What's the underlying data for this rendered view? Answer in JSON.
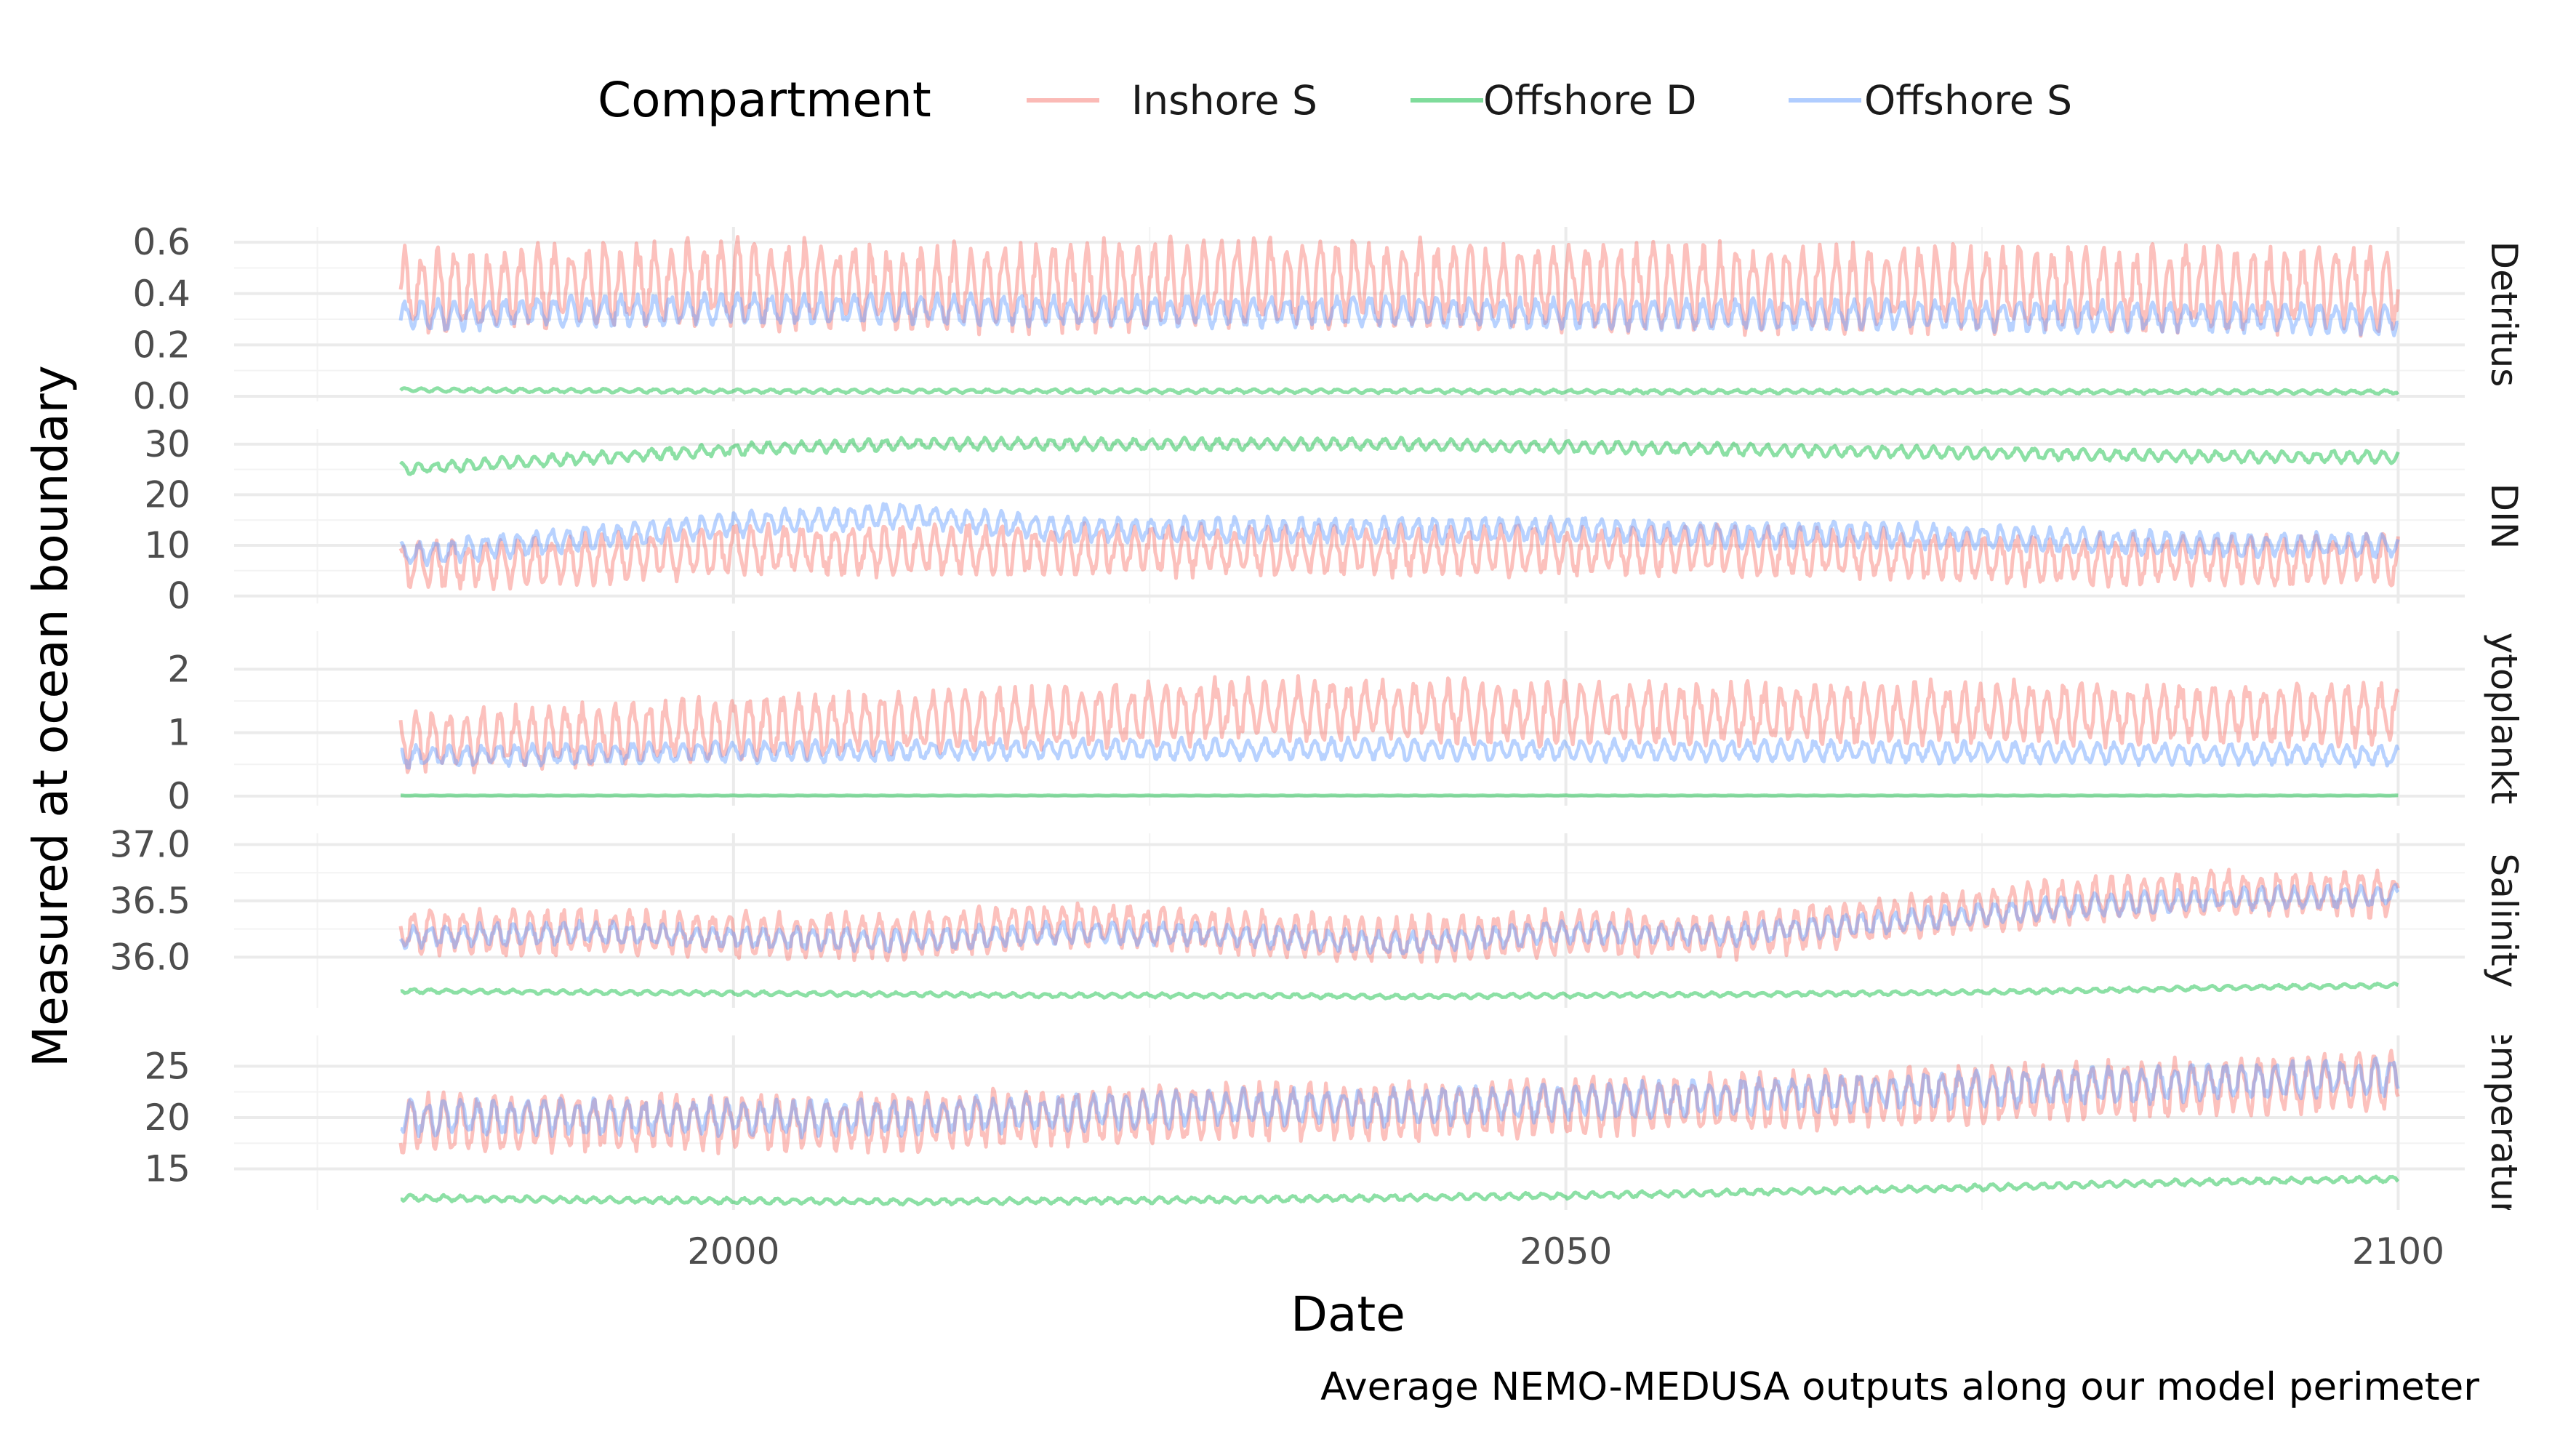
{
  "legend": {
    "title": "Compartment",
    "items": [
      {
        "label": "Inshore S",
        "color": "#F8766D"
      },
      {
        "label": "Offshore D",
        "color": "#00BA38"
      },
      {
        "label": "Offshore S",
        "color": "#619CFF"
      }
    ]
  },
  "caption": "Average NEMO-MEDUSA outputs along our model perimeter",
  "chart_data": {
    "type": "line",
    "xlabel": "Date",
    "ylabel": "Measured at ocean boundary",
    "xlim": [
      1970,
      2104
    ],
    "x_start": 1980,
    "x_end": 2100,
    "x_ticks": [
      2000,
      2050,
      2100
    ],
    "x_tick_labels": [
      "2000",
      "2050",
      "2100"
    ],
    "grid": true,
    "legend_position": "top",
    "line_alpha": 0.45,
    "series_names": [
      "Inshore S",
      "Offshore D",
      "Offshore S"
    ],
    "panels": [
      {
        "strip": "Detritus",
        "ylim": [
          -0.02,
          0.66
        ],
        "y_ticks": [
          0.0,
          0.2,
          0.4,
          0.6
        ],
        "y_tick_labels": [
          "0.0",
          "0.2",
          "0.4",
          "0.6"
        ],
        "series": [
          {
            "name": "Inshore S",
            "x": [
              1980,
              1990,
              2000,
              2010,
              2020,
              2030,
              2040,
              2050,
              2060,
              2070,
              2080,
              2090,
              2100
            ],
            "values": [
              0.4,
              0.43,
              0.44,
              0.42,
              0.43,
              0.44,
              0.44,
              0.43,
              0.42,
              0.42,
              0.42,
              0.42,
              0.42
            ],
            "amplitude": 0.17
          },
          {
            "name": "Offshore D",
            "x": [
              1980,
              1990,
              2000,
              2010,
              2020,
              2030,
              2040,
              2050,
              2060,
              2070,
              2080,
              2090,
              2100
            ],
            "values": [
              0.025,
              0.022,
              0.02,
              0.02,
              0.02,
              0.02,
              0.02,
              0.018,
              0.018,
              0.018,
              0.018,
              0.017,
              0.017
            ],
            "amplitude": 0.008
          },
          {
            "name": "Offshore S",
            "x": [
              1980,
              1990,
              2000,
              2010,
              2020,
              2030,
              2040,
              2050,
              2060,
              2070,
              2080,
              2090,
              2100
            ],
            "values": [
              0.31,
              0.33,
              0.34,
              0.34,
              0.33,
              0.33,
              0.33,
              0.32,
              0.32,
              0.32,
              0.31,
              0.31,
              0.3
            ],
            "amplitude": 0.06
          }
        ]
      },
      {
        "strip": "DIN",
        "ylim": [
          -1.5,
          33
        ],
        "y_ticks": [
          0,
          10,
          20,
          30
        ],
        "y_tick_labels": [
          "0",
          "10",
          "20",
          "30"
        ],
        "series": [
          {
            "name": "Inshore S",
            "x": [
              1980,
              1990,
              2000,
              2010,
              2020,
              2030,
              2040,
              2050,
              2060,
              2070,
              2080,
              2090,
              2100
            ],
            "values": [
              6,
              7,
              9,
              9,
              9,
              9,
              9,
              9,
              9,
              8,
              7,
              7,
              7
            ],
            "amplitude": 5
          },
          {
            "name": "Offshore D",
            "x": [
              1980,
              1990,
              2000,
              2010,
              2020,
              2030,
              2040,
              2050,
              2060,
              2070,
              2080,
              2090,
              2100
            ],
            "values": [
              25,
              27,
              29,
              30,
              30,
              30,
              30,
              29.5,
              29,
              28.5,
              28,
              27.5,
              27.5
            ],
            "amplitude": 1.2
          },
          {
            "name": "Offshore S",
            "x": [
              1980,
              1990,
              2000,
              2010,
              2020,
              2030,
              2040,
              2050,
              2060,
              2070,
              2080,
              2090,
              2100
            ],
            "values": [
              8,
              11,
              14,
              16,
              13,
              13,
              13,
              13,
              12,
              12,
              11,
              10,
              10
            ],
            "amplitude": 2.5
          }
        ]
      },
      {
        "strip": "Phytoplankton",
        "ylim": [
          -0.15,
          2.6
        ],
        "y_ticks": [
          0,
          1,
          2
        ],
        "y_tick_labels": [
          "0",
          "1",
          "2"
        ],
        "series": [
          {
            "name": "Inshore S",
            "x": [
              1980,
              1990,
              2000,
              2010,
              2020,
              2030,
              2040,
              2050,
              2060,
              2070,
              2080,
              2090,
              2100
            ],
            "values": [
              0.85,
              0.95,
              1.05,
              1.15,
              1.25,
              1.35,
              1.35,
              1.3,
              1.3,
              1.3,
              1.3,
              1.3,
              1.3
            ],
            "amplitude": 0.5
          },
          {
            "name": "Offshore D",
            "x": [
              1980,
              1990,
              2000,
              2010,
              2020,
              2030,
              2040,
              2050,
              2060,
              2070,
              2080,
              2090,
              2100
            ],
            "values": [
              0.01,
              0.01,
              0.01,
              0.01,
              0.01,
              0.01,
              0.01,
              0.01,
              0.01,
              0.01,
              0.01,
              0.01,
              0.01
            ],
            "amplitude": 0.003
          },
          {
            "name": "Offshore S",
            "x": [
              1980,
              1990,
              2000,
              2010,
              2020,
              2030,
              2040,
              2050,
              2060,
              2070,
              2080,
              2090,
              2100
            ],
            "values": [
              0.62,
              0.66,
              0.7,
              0.72,
              0.74,
              0.74,
              0.74,
              0.72,
              0.72,
              0.7,
              0.68,
              0.66,
              0.64
            ],
            "amplitude": 0.17
          }
        ]
      },
      {
        "strip": "Salinity",
        "ylim": [
          35.55,
          37.1
        ],
        "y_ticks": [
          36.0,
          36.5,
          37.0
        ],
        "y_tick_labels": [
          "36.0",
          "36.5",
          "37.0"
        ],
        "series": [
          {
            "name": "Inshore S",
            "x": [
              1980,
              1990,
              2000,
              2010,
              2020,
              2030,
              2040,
              2050,
              2060,
              2070,
              2080,
              2090,
              2100
            ],
            "values": [
              36.22,
              36.22,
              36.2,
              36.18,
              36.3,
              36.22,
              36.15,
              36.22,
              36.18,
              36.35,
              36.5,
              36.58,
              36.55
            ],
            "amplitude": 0.2
          },
          {
            "name": "Offshore D",
            "x": [
              1980,
              1990,
              2000,
              2010,
              2020,
              2030,
              2040,
              2050,
              2060,
              2070,
              2080,
              2090,
              2100
            ],
            "values": [
              35.7,
              35.69,
              35.68,
              35.67,
              35.66,
              35.66,
              35.65,
              35.66,
              35.67,
              35.68,
              35.7,
              35.73,
              35.75
            ],
            "amplitude": 0.02
          },
          {
            "name": "Offshore S",
            "x": [
              1980,
              1990,
              2000,
              2010,
              2020,
              2030,
              2040,
              2050,
              2060,
              2070,
              2080,
              2090,
              2100
            ],
            "values": [
              36.18,
              36.22,
              36.18,
              36.15,
              36.22,
              36.2,
              36.12,
              36.22,
              36.2,
              36.32,
              36.45,
              36.52,
              36.55
            ],
            "amplitude": 0.1
          }
        ]
      },
      {
        "strip": "Temperature",
        "ylim": [
          11,
          28
        ],
        "y_ticks": [
          15,
          20,
          25
        ],
        "y_tick_labels": [
          "15",
          "20",
          "25"
        ],
        "series": [
          {
            "name": "Inshore S",
            "x": [
              1980,
              1990,
              2000,
              2010,
              2020,
              2030,
              2040,
              2050,
              2060,
              2070,
              2080,
              2090,
              2100
            ],
            "values": [
              19.5,
              19.5,
              19.5,
              19.5,
              20,
              20.5,
              20.5,
              21,
              21.5,
              22,
              22.5,
              23,
              23.5
            ],
            "amplitude": 2.8
          },
          {
            "name": "Offshore D",
            "x": [
              1980,
              1990,
              2000,
              2010,
              2020,
              2030,
              2040,
              2050,
              2060,
              2070,
              2080,
              2090,
              2100
            ],
            "values": [
              12.2,
              12,
              11.9,
              11.8,
              11.9,
              12,
              12.2,
              12.4,
              12.7,
              13,
              13.4,
              13.8,
              14
            ],
            "amplitude": 0.3
          },
          {
            "name": "Offshore S",
            "x": [
              1980,
              1990,
              2000,
              2010,
              2020,
              2030,
              2040,
              2050,
              2060,
              2070,
              2080,
              2090,
              2100
            ],
            "values": [
              20,
              20,
              20,
              20,
              20.5,
              21,
              21,
              21.5,
              22,
              22.5,
              23,
              23.5,
              24
            ],
            "amplitude": 1.8
          }
        ]
      }
    ]
  }
}
